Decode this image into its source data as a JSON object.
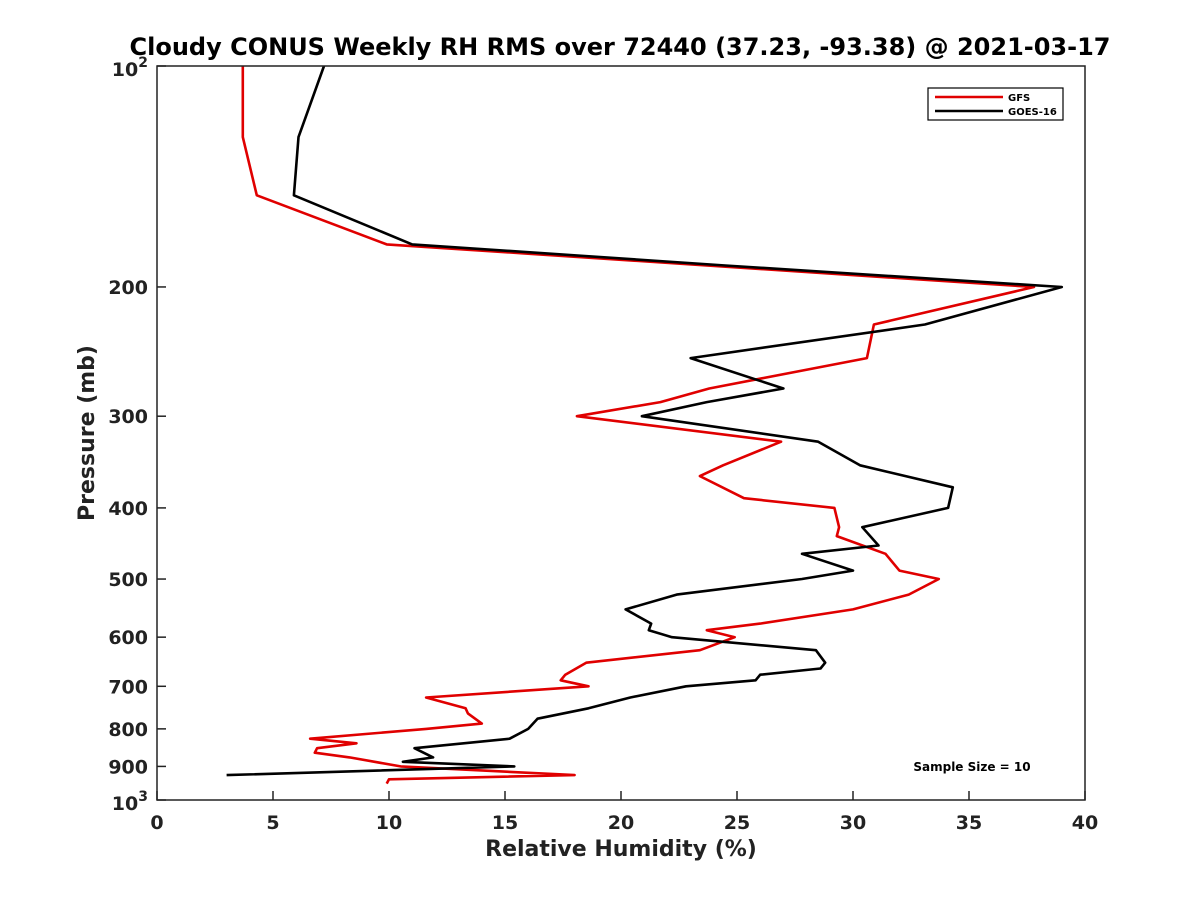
{
  "chart_data": {
    "type": "line",
    "title": "Cloudy CONUS Weekly RH RMS over 72440 (37.23, -93.38) @ 2021-03-17",
    "xlabel": "Relative Humidity (%)",
    "ylabel": "Pressure (mb)",
    "xlim": [
      0,
      40
    ],
    "ylim": [
      100,
      1000
    ],
    "y_scale": "log",
    "y_reversed": true,
    "x_ticks": [
      "0",
      "5",
      "10",
      "15",
      "20",
      "25",
      "30",
      "35",
      "40"
    ],
    "x_tick_values": [
      0,
      5,
      10,
      15,
      20,
      25,
      30,
      35,
      40
    ],
    "y_ticks": [
      {
        "base": "10",
        "exp": "2",
        "value": 100
      },
      {
        "label": "200",
        "value": 200
      },
      {
        "label": "300",
        "value": 300
      },
      {
        "label": "400",
        "value": 400
      },
      {
        "label": "500",
        "value": 500
      },
      {
        "label": "600",
        "value": 600
      },
      {
        "label": "700",
        "value": 700
      },
      {
        "label": "800",
        "value": 800
      },
      {
        "label": "900",
        "value": 900
      },
      {
        "base": "10",
        "exp": "3",
        "value": 1000
      }
    ],
    "legend_position": "top-right",
    "grid": false,
    "annotation": "Sample Size = 10",
    "series": [
      {
        "name": "GFS",
        "color": "#e00000",
        "points": [
          [
            3.7,
            100
          ],
          [
            3.7,
            125
          ],
          [
            4.3,
            150
          ],
          [
            9.9,
            175
          ],
          [
            37.8,
            200
          ],
          [
            30.9,
            225
          ],
          [
            30.6,
            250
          ],
          [
            23.8,
            275
          ],
          [
            21.7,
            287
          ],
          [
            18.1,
            300
          ],
          [
            26.9,
            325
          ],
          [
            24.4,
            350
          ],
          [
            23.4,
            362
          ],
          [
            25.3,
            388
          ],
          [
            29.2,
            400
          ],
          [
            29.4,
            425
          ],
          [
            29.3,
            437
          ],
          [
            31.4,
            462
          ],
          [
            32.0,
            487
          ],
          [
            33.7,
            500
          ],
          [
            32.4,
            525
          ],
          [
            30.0,
            550
          ],
          [
            26.0,
            575
          ],
          [
            23.7,
            587
          ],
          [
            24.9,
            600
          ],
          [
            23.4,
            625
          ],
          [
            18.5,
            650
          ],
          [
            17.6,
            675
          ],
          [
            17.4,
            687
          ],
          [
            18.6,
            700
          ],
          [
            11.6,
            725
          ],
          [
            13.3,
            750
          ],
          [
            13.4,
            762
          ],
          [
            14.0,
            787
          ],
          [
            11.6,
            800
          ],
          [
            6.6,
            825
          ],
          [
            8.6,
            837
          ],
          [
            6.9,
            850
          ],
          [
            6.8,
            862
          ],
          [
            8.3,
            875
          ],
          [
            10.5,
            900
          ],
          [
            18.0,
            925
          ],
          [
            10.0,
            937
          ],
          [
            9.9,
            950
          ]
        ]
      },
      {
        "name": "GOES-16",
        "color": "#000000",
        "points": [
          [
            7.2,
            100
          ],
          [
            6.1,
            125
          ],
          [
            5.9,
            150
          ],
          [
            11.0,
            175
          ],
          [
            24.5,
            187
          ],
          [
            39.0,
            200
          ],
          [
            33.1,
            225
          ],
          [
            23.0,
            250
          ],
          [
            27.0,
            275
          ],
          [
            23.7,
            287
          ],
          [
            20.9,
            300
          ],
          [
            28.5,
            325
          ],
          [
            30.3,
            350
          ],
          [
            34.3,
            375
          ],
          [
            34.1,
            400
          ],
          [
            30.4,
            425
          ],
          [
            31.1,
            450
          ],
          [
            27.8,
            462
          ],
          [
            30.0,
            487
          ],
          [
            27.8,
            500
          ],
          [
            22.4,
            525
          ],
          [
            20.2,
            550
          ],
          [
            21.3,
            575
          ],
          [
            21.2,
            587
          ],
          [
            22.2,
            600
          ],
          [
            28.4,
            625
          ],
          [
            28.8,
            650
          ],
          [
            28.6,
            662
          ],
          [
            26.0,
            675
          ],
          [
            25.8,
            687
          ],
          [
            22.8,
            700
          ],
          [
            20.4,
            725
          ],
          [
            18.6,
            750
          ],
          [
            16.4,
            775
          ],
          [
            16.0,
            800
          ],
          [
            15.2,
            825
          ],
          [
            11.1,
            850
          ],
          [
            11.9,
            875
          ],
          [
            10.6,
            887
          ],
          [
            15.4,
            900
          ],
          [
            3.0,
            925
          ]
        ]
      }
    ]
  }
}
